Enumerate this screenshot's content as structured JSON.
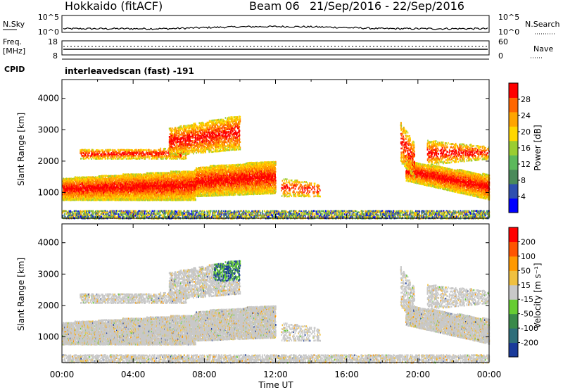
{
  "header": {
    "title": "Hokkaido (fitACF)",
    "beam": "Beam 06",
    "daterange": "21/Sep/2016 - 22/Sep/2016"
  },
  "sky_panel": {
    "left_label": "N.Sky",
    "left_ticks": [
      "10^5",
      "10^0"
    ],
    "right_ticks": [
      "10^5",
      "10^0"
    ],
    "right_label": "N.Search"
  },
  "freq_panel": {
    "left_label_1": "Freq.",
    "left_label_2": "[MHz]",
    "left_ticks": [
      "18",
      "8"
    ],
    "right_ticks": [
      "60",
      "0"
    ],
    "right_label": "Nave"
  },
  "cpid_panel": {
    "label": "CPID",
    "text": "interleavedscan (fast) -191"
  },
  "chart_data": [
    {
      "type": "heatmap",
      "name": "power",
      "ylabel": "Slant Range [km]",
      "yticks": [
        "4000",
        "3000",
        "2000",
        "1000"
      ],
      "ylim": [
        180,
        4600
      ],
      "xlim_hours": [
        0,
        24
      ],
      "colorbar_label": "Power [dB]",
      "colorbar_ticks": [
        "28",
        "24",
        "20",
        "16",
        "12",
        "8",
        "4"
      ],
      "colorbar_colors": [
        "#0000ff",
        "#2e4fb0",
        "#4a8a5a",
        "#5cb85c",
        "#9acd32",
        "#ffd700",
        "#ffa500",
        "#ff6600",
        "#ff0000"
      ]
    },
    {
      "type": "heatmap",
      "name": "velocity",
      "ylabel": "Slant Range [km]",
      "yticks": [
        "4000",
        "3000",
        "2000",
        "1000"
      ],
      "ylim": [
        180,
        4600
      ],
      "xlim_hours": [
        0,
        24
      ],
      "colorbar_label": "Velocity [m s⁻¹]",
      "colorbar_ticks": [
        "200",
        "100",
        "50",
        "15",
        "-15",
        "-50",
        "-100",
        "-200"
      ],
      "colorbar_colors": [
        "#1a3a9a",
        "#2e6e7a",
        "#3a8a4a",
        "#66cc33",
        "#c8c8c8",
        "#f0c040",
        "#ff9900",
        "#ff5500",
        "#ff0000"
      ]
    }
  ],
  "xaxis": {
    "ticks": [
      "00:00",
      "04:00",
      "08:00",
      "12:00",
      "16:00",
      "20:00",
      "00:00"
    ],
    "label": "Time UT"
  }
}
